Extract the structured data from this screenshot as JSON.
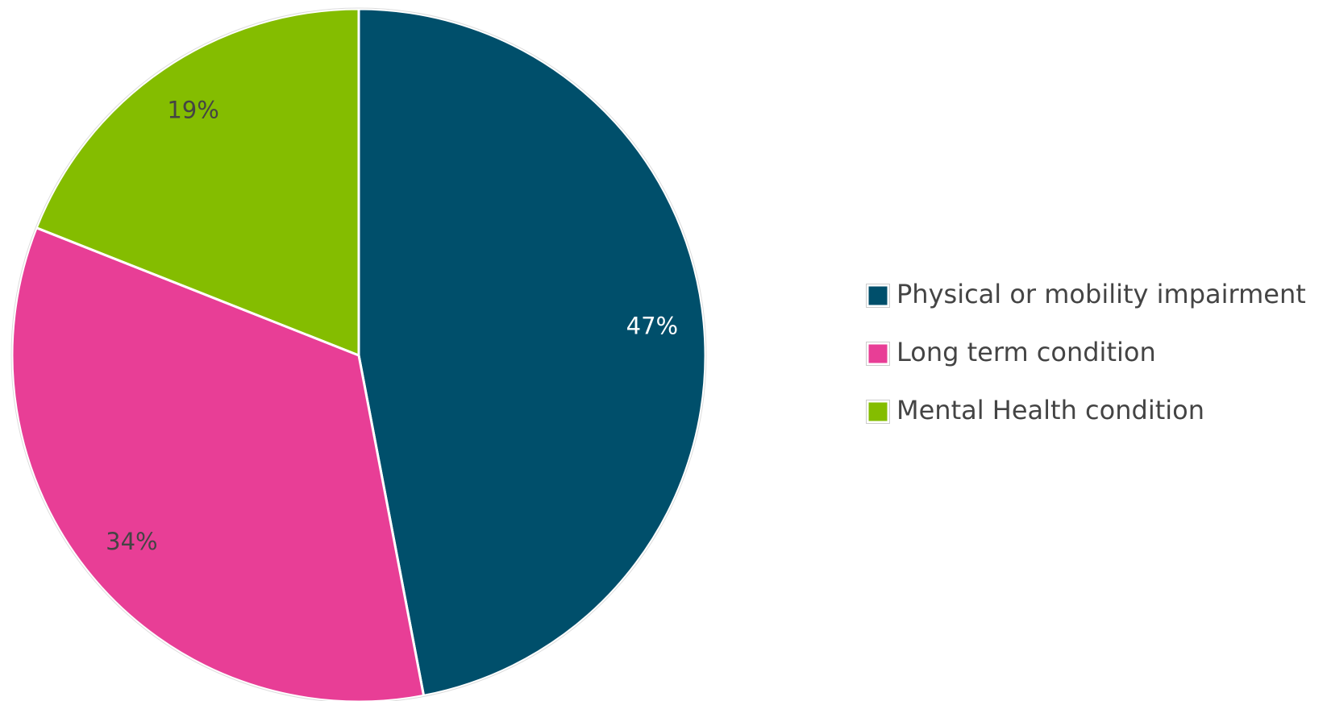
{
  "chart_data": {
    "type": "pie",
    "categories": [
      "Physical or mobility impairment",
      "Long term condition",
      "Mental Health condition"
    ],
    "values": [
      47,
      34,
      19
    ],
    "value_labels": [
      "47%",
      "34%",
      "19%"
    ],
    "colors": [
      "#004f6b",
      "#e83e96",
      "#84bd00"
    ],
    "legend": "right"
  }
}
